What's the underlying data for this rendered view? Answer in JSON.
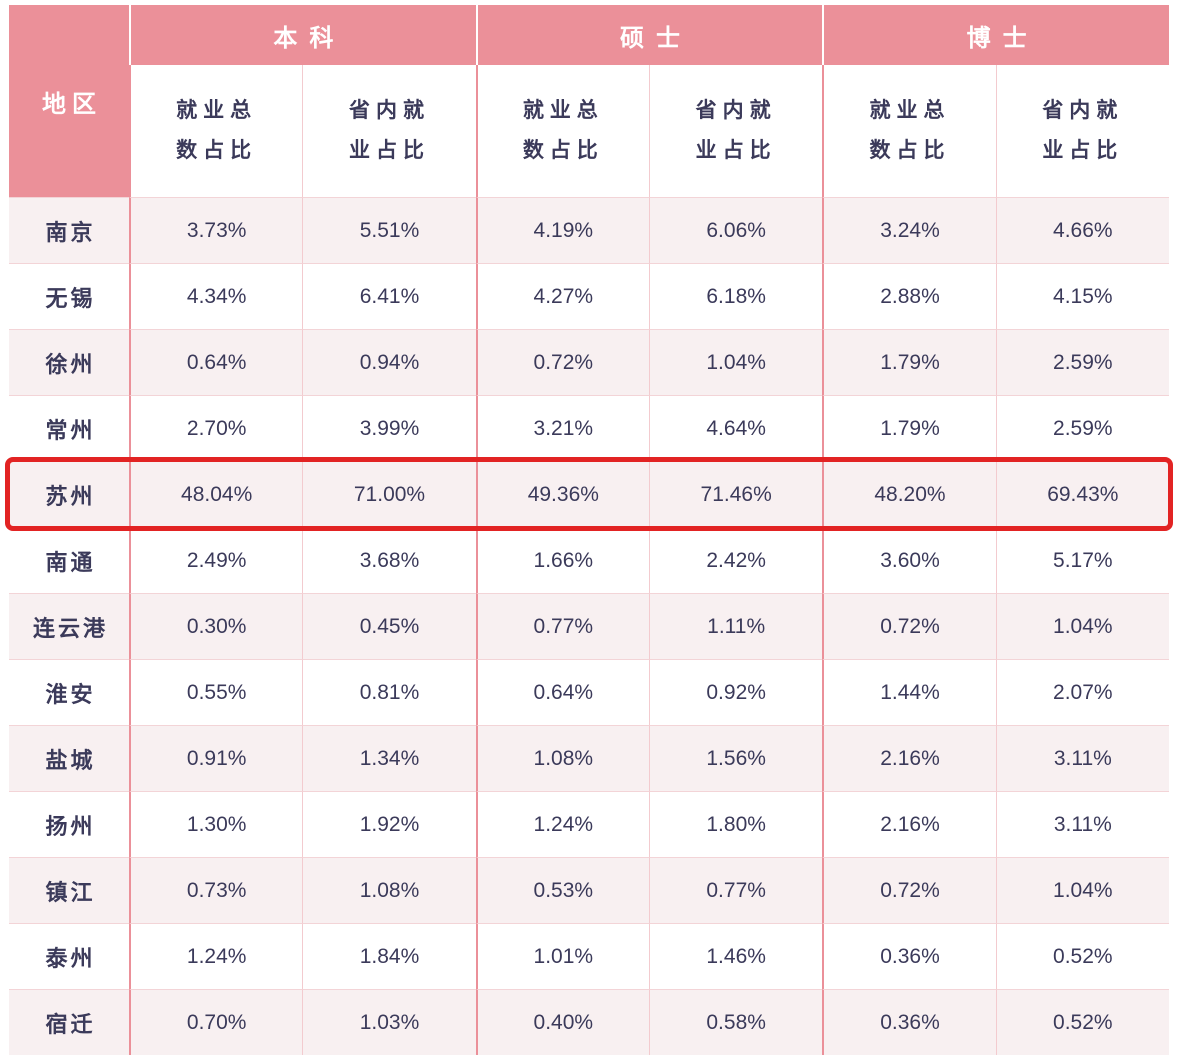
{
  "chart_data": {
    "type": "table",
    "row_header": "地区",
    "column_groups": [
      "本科",
      "硕士",
      "博士"
    ],
    "sub_columns": [
      "就业总数占比",
      "省内就业占比"
    ],
    "highlighted_row": "苏州",
    "rows": [
      {
        "region": "南京",
        "highlight": false,
        "values": [
          "3.73%",
          "5.51%",
          "4.19%",
          "6.06%",
          "3.24%",
          "4.66%"
        ]
      },
      {
        "region": "无锡",
        "highlight": false,
        "values": [
          "4.34%",
          "6.41%",
          "4.27%",
          "6.18%",
          "2.88%",
          "4.15%"
        ]
      },
      {
        "region": "徐州",
        "highlight": false,
        "values": [
          "0.64%",
          "0.94%",
          "0.72%",
          "1.04%",
          "1.79%",
          "2.59%"
        ]
      },
      {
        "region": "常州",
        "highlight": false,
        "values": [
          "2.70%",
          "3.99%",
          "3.21%",
          "4.64%",
          "1.79%",
          "2.59%"
        ]
      },
      {
        "region": "苏州",
        "highlight": true,
        "values": [
          "48.04%",
          "71.00%",
          "49.36%",
          "71.46%",
          "48.20%",
          "69.43%"
        ]
      },
      {
        "region": "南通",
        "highlight": false,
        "values": [
          "2.49%",
          "3.68%",
          "1.66%",
          "2.42%",
          "3.60%",
          "5.17%"
        ]
      },
      {
        "region": "连云港",
        "highlight": false,
        "values": [
          "0.30%",
          "0.45%",
          "0.77%",
          "1.11%",
          "0.72%",
          "1.04%"
        ]
      },
      {
        "region": "淮安",
        "highlight": false,
        "values": [
          "0.55%",
          "0.81%",
          "0.64%",
          "0.92%",
          "1.44%",
          "2.07%"
        ]
      },
      {
        "region": "盐城",
        "highlight": false,
        "values": [
          "0.91%",
          "1.34%",
          "1.08%",
          "1.56%",
          "2.16%",
          "3.11%"
        ]
      },
      {
        "region": "扬州",
        "highlight": false,
        "values": [
          "1.30%",
          "1.92%",
          "1.24%",
          "1.80%",
          "2.16%",
          "3.11%"
        ]
      },
      {
        "region": "镇江",
        "highlight": false,
        "values": [
          "0.73%",
          "1.08%",
          "0.53%",
          "0.77%",
          "0.72%",
          "1.04%"
        ]
      },
      {
        "region": "泰州",
        "highlight": false,
        "values": [
          "1.24%",
          "1.84%",
          "1.01%",
          "1.46%",
          "0.36%",
          "0.52%"
        ]
      },
      {
        "region": "宿迁",
        "highlight": false,
        "values": [
          "0.70%",
          "1.03%",
          "0.40%",
          "0.58%",
          "0.36%",
          "0.52%"
        ]
      }
    ]
  },
  "colors": {
    "header_bg": "#EB9099",
    "header_fg": "#FFFFFF",
    "text_dark": "#3B3A5A",
    "row_alt_bg": "#F8F0F1",
    "line_strong": "#EB9099",
    "line_light": "#F3CBCF",
    "line_row": "#F3D4D7",
    "highlight_red": "#E22323"
  }
}
